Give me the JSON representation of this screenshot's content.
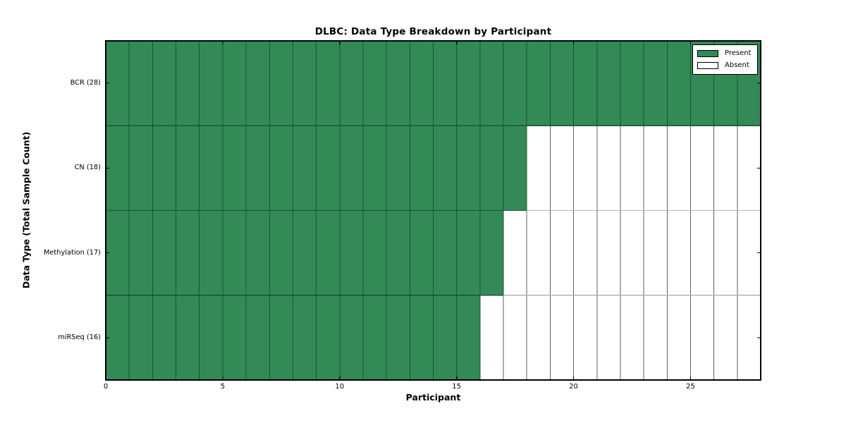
{
  "chart_data": {
    "type": "heatmap",
    "title": "DLBC: Data Type Breakdown by Participant",
    "xlabel": "Participant",
    "ylabel": "Data Type (Total Sample Count)",
    "x_range": [
      0,
      28
    ],
    "x_ticks": [
      0,
      5,
      10,
      15,
      20,
      25
    ],
    "cell_states": [
      "Present",
      "Absent"
    ],
    "rows": [
      {
        "label": "BCR (28)",
        "name": "BCR",
        "total": 28,
        "present_count": 28,
        "absent_count": 0
      },
      {
        "label": "CN (18)",
        "name": "CN",
        "total": 18,
        "present_count": 18,
        "absent_count": 10
      },
      {
        "label": "Methylation (17)",
        "name": "Methylation",
        "total": 17,
        "present_count": 17,
        "absent_count": 11
      },
      {
        "label": "miRSeq (16)",
        "name": "miRSeq",
        "total": 16,
        "present_count": 16,
        "absent_count": 12
      }
    ],
    "legend": {
      "position": "upper right",
      "entries": [
        {
          "label": "Present",
          "color": "#338A57"
        },
        {
          "label": "Absent",
          "color": "#FFFFFF"
        }
      ]
    },
    "colors": {
      "present_fill": "#338A57",
      "absent_fill": "#FFFFFF",
      "green_grid_line": "#1B5233",
      "white_grid_line": "#5F5F5F",
      "light_row_line": "#B5B5B5",
      "axis_frame": "#000000"
    },
    "grid": "on"
  }
}
